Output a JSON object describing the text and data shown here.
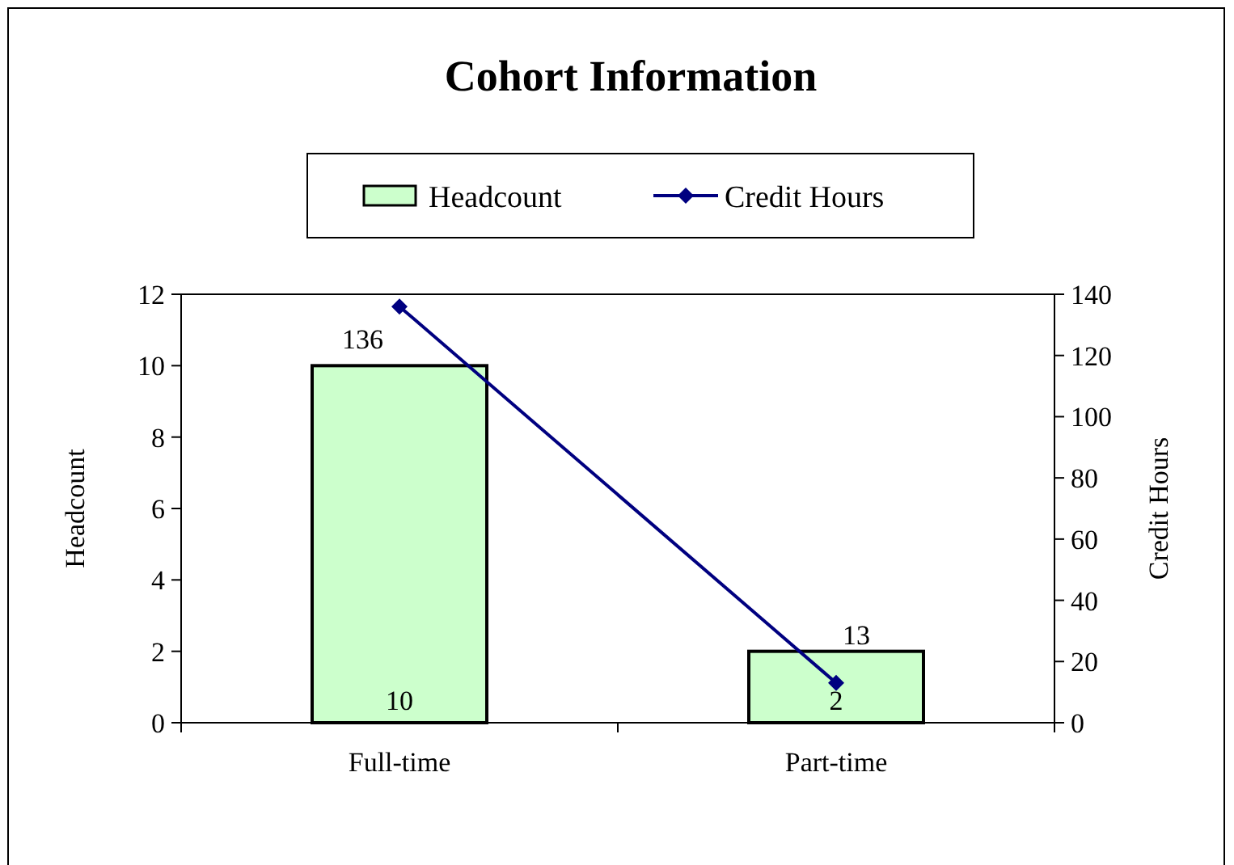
{
  "chart_data": {
    "type": "bar",
    "title": "Cohort Information",
    "categories": [
      "Full-time",
      "Part-time"
    ],
    "series": [
      {
        "name": "Headcount",
        "color": "#ccffcc",
        "values": [
          10,
          2
        ]
      },
      {
        "name": "Credit Hours",
        "type": "line",
        "axis": "y2",
        "color": "#000080",
        "values": [
          136,
          13
        ]
      }
    ],
    "ylabel": "Headcount",
    "y2label": "Credit Hours",
    "ylim": [
      0,
      12
    ],
    "yticks": [
      0,
      2,
      4,
      6,
      8,
      10,
      12
    ],
    "y2lim": [
      0,
      140
    ],
    "y2ticks": [
      0,
      20,
      40,
      60,
      80,
      100,
      120,
      140
    ],
    "data_labels": true,
    "legend": "top",
    "marker": "diamond",
    "grid": false
  }
}
